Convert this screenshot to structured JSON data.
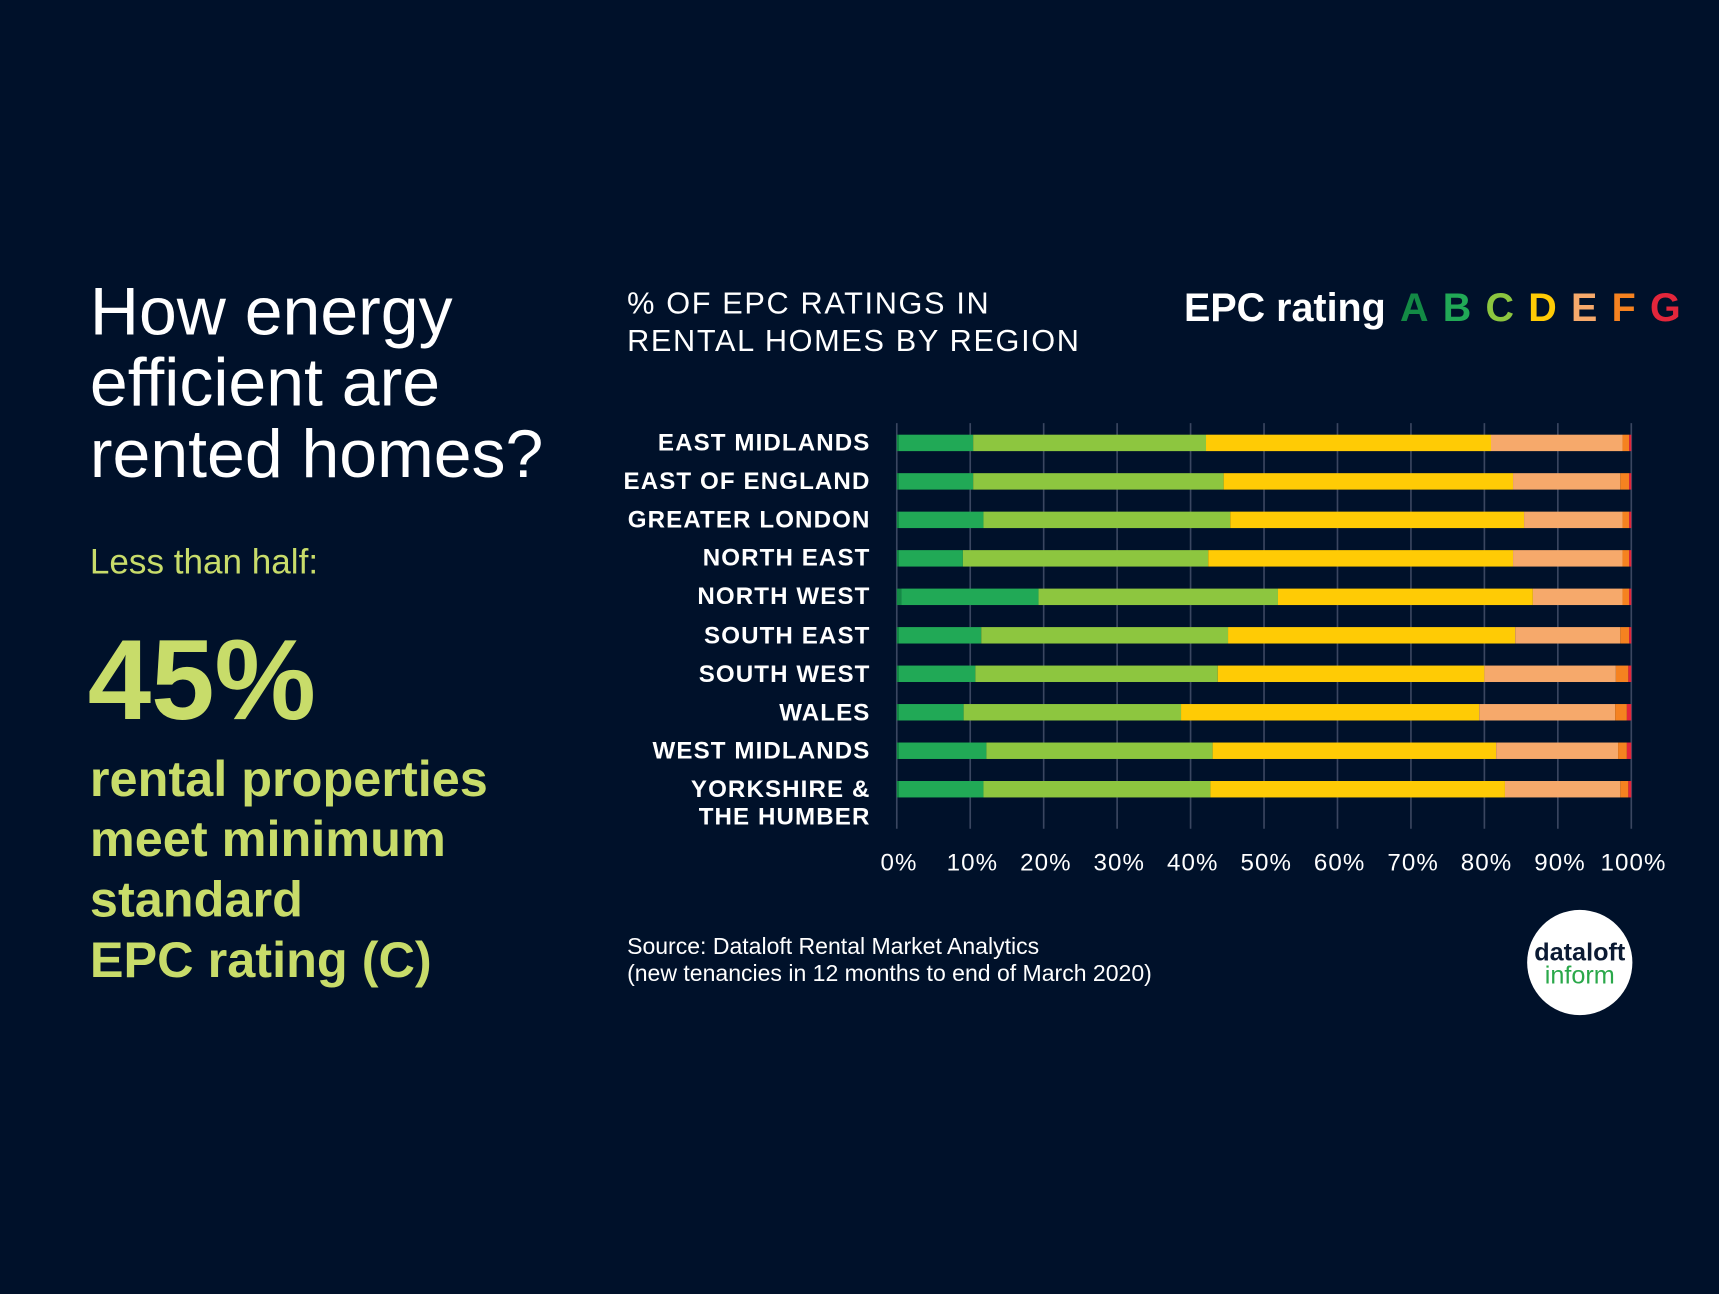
{
  "panel": {
    "title": "How energy\nefficient are\nrented homes?",
    "subtitle": "Less than half:",
    "stat": "45%",
    "description": "rental properties\nmeet minimum\nstandard\nEPC rating (C)"
  },
  "chart_data": {
    "type": "stacked-bar-horizontal",
    "title": "% OF EPC RATINGS IN\nRENTAL HOMES BY REGION",
    "legend_title": "EPC rating",
    "categories": [
      "EAST MIDLANDS",
      "EAST OF ENGLAND",
      "GREATER LONDON",
      "NORTH EAST",
      "NORTH WEST",
      "SOUTH EAST",
      "SOUTH WEST",
      "WALES",
      "WEST MIDLANDS",
      "YORKSHIRE &\nTHE HUMBER"
    ],
    "series": [
      {
        "name": "A",
        "color": "#138a45",
        "values": [
          0.3,
          0.3,
          0.3,
          0.3,
          0.6,
          0.3,
          0.3,
          0.3,
          0.3,
          0.3
        ]
      },
      {
        "name": "B",
        "color": "#21a956",
        "values": [
          10.1,
          10.1,
          11.5,
          8.7,
          18.7,
          11.2,
          10.4,
          8.8,
          11.9,
          11.5
        ]
      },
      {
        "name": "C",
        "color": "#8dc63f",
        "values": [
          31.7,
          34.1,
          33.6,
          33.4,
          32.6,
          33.6,
          33.0,
          29.6,
          30.8,
          30.9
        ]
      },
      {
        "name": "D",
        "color": "#ffcb05",
        "values": [
          38.8,
          39.4,
          40.0,
          41.5,
          34.7,
          39.1,
          36.3,
          40.6,
          38.6,
          40.1
        ]
      },
      {
        "name": "E",
        "color": "#f6a96b",
        "values": [
          17.9,
          14.6,
          13.4,
          14.9,
          12.2,
          14.3,
          17.9,
          18.5,
          16.6,
          15.7
        ]
      },
      {
        "name": "F",
        "color": "#f58220",
        "values": [
          0.9,
          1.2,
          0.9,
          0.9,
          0.9,
          1.2,
          1.7,
          1.6,
          1.2,
          1.1
        ]
      },
      {
        "name": "G",
        "color": "#e3263b",
        "values": [
          0.3,
          0.3,
          0.3,
          0.3,
          0.3,
          0.3,
          0.4,
          0.6,
          0.6,
          0.4
        ]
      }
    ],
    "xlim": [
      0,
      100
    ],
    "xticks": [
      {
        "value": 0,
        "label": "0%"
      },
      {
        "value": 10,
        "label": "10%"
      },
      {
        "value": 20,
        "label": "20%"
      },
      {
        "value": 30,
        "label": "30%"
      },
      {
        "value": 40,
        "label": "40%"
      },
      {
        "value": 50,
        "label": "50%"
      },
      {
        "value": 60,
        "label": "60%"
      },
      {
        "value": 70,
        "label": "70%"
      },
      {
        "value": 80,
        "label": "80%"
      },
      {
        "value": 90,
        "label": "90%"
      },
      {
        "value": 100,
        "label": "100%"
      }
    ],
    "grid": true
  },
  "source": "Source:  Dataloft Rental Market Analytics\n(new tenancies in 12 months to end of March 2020)",
  "logo": {
    "top": "dataloft",
    "bottom": "inform"
  }
}
